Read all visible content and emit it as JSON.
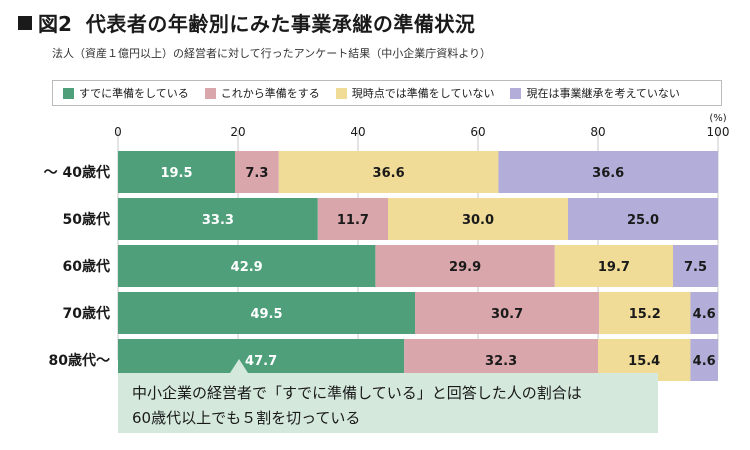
{
  "header": {
    "fig_label": "図2",
    "title": "代表者の年齢別にみた事業承継の準備状況",
    "subtitle": "法人（資産１億円以上）の経営者に対して行ったアンケート結果（中小企業庁資料より）"
  },
  "legend": [
    {
      "label": "すでに準備をしている",
      "color": "#4f9f7b"
    },
    {
      "label": "これから準備をする",
      "color": "#d9a6ac"
    },
    {
      "label": "現時点では準備をしていない",
      "color": "#f0dc96"
    },
    {
      "label": "現在は事業継承を考えていない",
      "color": "#b3aed9"
    }
  ],
  "chart_data": {
    "type": "bar",
    "orientation": "horizontal",
    "stacked": true,
    "categories": [
      "〜 40歳代",
      "50歳代",
      "60歳代",
      "70歳代",
      "80歳代〜"
    ],
    "series": [
      {
        "name": "すでに準備をしている",
        "color": "#4f9f7b",
        "values": [
          19.5,
          33.3,
          42.9,
          49.5,
          47.7
        ]
      },
      {
        "name": "これから準備をする",
        "color": "#d9a6ac",
        "values": [
          7.3,
          11.7,
          29.9,
          30.7,
          32.3
        ]
      },
      {
        "name": "現時点では準備をしていない",
        "color": "#f0dc96",
        "values": [
          36.6,
          30.0,
          19.7,
          15.2,
          15.4
        ]
      },
      {
        "name": "現在は事業継承を考えていない",
        "color": "#b3aed9",
        "values": [
          36.6,
          25.0,
          7.5,
          4.6,
          4.6
        ]
      }
    ],
    "xlim": [
      0,
      100
    ],
    "xticks": [
      0,
      20,
      40,
      60,
      80,
      100
    ],
    "unit_label": "(%)",
    "grid": true,
    "legend_position": "top"
  },
  "note": {
    "line1": "中小企業の経営者で「すでに準備している」と回答した人の割合は",
    "line2": "60歳代以上でも５割を切っている"
  }
}
